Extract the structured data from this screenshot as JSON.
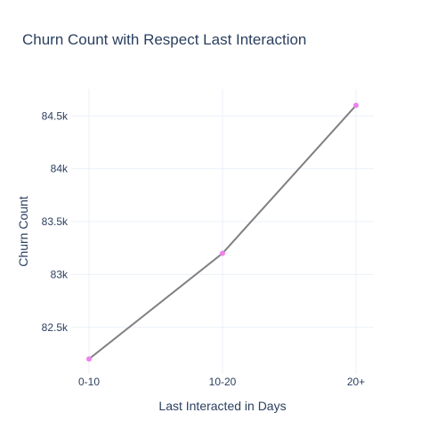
{
  "chart_data": {
    "type": "line",
    "title": "Churn Count with Respect Last Interaction",
    "xlabel": "Last Interacted in Days",
    "ylabel": "Churn Count",
    "categories": [
      "0-10",
      "10-20",
      "20+"
    ],
    "series": [
      {
        "values": [
          82200,
          83200,
          84600
        ]
      }
    ],
    "ylim": [
      82060,
      84755
    ],
    "yticks": [
      82500,
      83000,
      83500,
      84000,
      84500
    ],
    "ytick_labels": [
      "82.5k",
      "83k",
      "83.5k",
      "84k",
      "84.5k"
    ],
    "grid": true,
    "line_color": "#808080",
    "marker_color": "#ee82ee"
  }
}
